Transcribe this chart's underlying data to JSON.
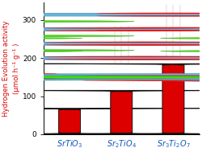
{
  "categories": [
    "SrTiO$_3$",
    "Sr$_2$TiO$_4$",
    "Sr$_3$Ti$_2$O$_7$"
  ],
  "values": [
    68,
    115,
    185
  ],
  "bar_color": "#dd0000",
  "bar_edge_color": "#111111",
  "bar_width": 0.42,
  "ylim": [
    0,
    345
  ],
  "yticks": [
    0,
    100,
    200,
    300
  ],
  "ylabel_line1": "Hydrogen Evolution activity",
  "ylabel_line2": "(μmol h⁻¹ g⁻¹ )",
  "ylabel_color": "#dd0000",
  "ylabel_fontsize": 6.2,
  "xlabel_fontsize": 7.0,
  "tick_fontsize": 6.5,
  "background_color": "#ffffff",
  "bar_positions": [
    0,
    1,
    2
  ],
  "blue_color": "#6ab4d8",
  "red_dot_color": "#ee1111",
  "green_color": "#44dd11",
  "line_color": "#aaaaaa",
  "crystal_edge": "#cc0000"
}
